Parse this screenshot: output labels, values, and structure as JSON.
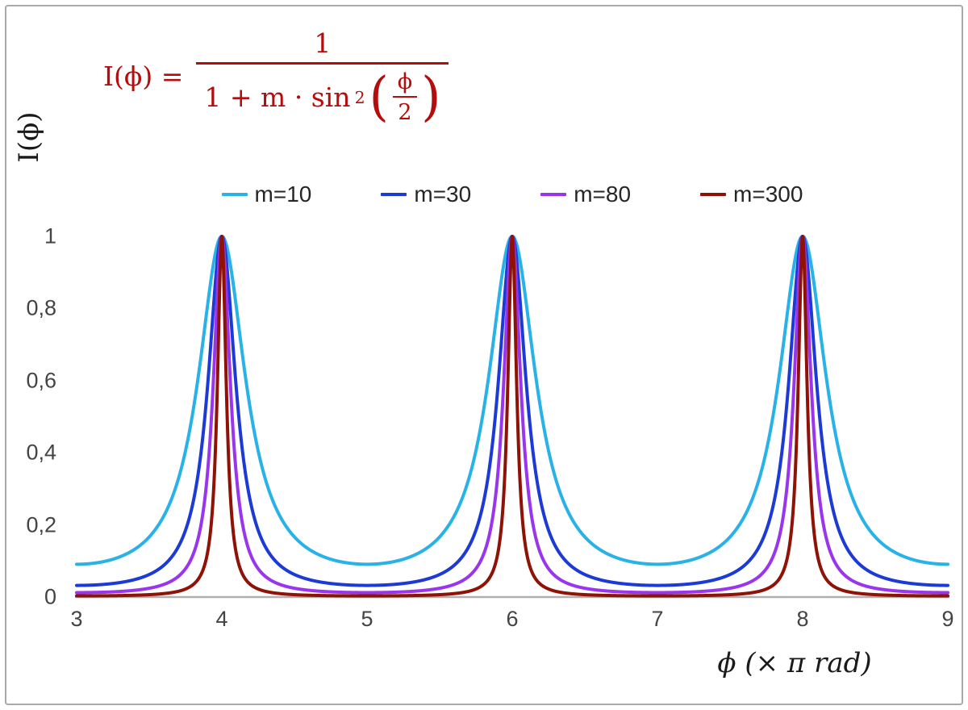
{
  "chart_data": {
    "type": "line",
    "title": "",
    "formula": {
      "lhs": "I(ϕ) =",
      "numerator": "1",
      "denom_prefix": "1 + m · sin",
      "denom_sup": "2",
      "inner_numerator": "ϕ",
      "inner_denominator": "2",
      "plain_text": "I(ϕ) = 1 / (1 + m·sin²(ϕ/2))"
    },
    "xlabel": "ϕ  (× π rad)",
    "ylabel": "I(ϕ)",
    "x_range": [
      3,
      9
    ],
    "y_range": [
      0,
      1
    ],
    "x_ticks": [
      "3",
      "4",
      "5",
      "6",
      "7",
      "8",
      "9"
    ],
    "x_tick_values": [
      3,
      4,
      5,
      6,
      7,
      8,
      9
    ],
    "y_ticks": [
      "0",
      "0,2",
      "0,4",
      "0,6",
      "0,8",
      "1"
    ],
    "y_tick_values": [
      0,
      0.2,
      0.4,
      0.6,
      0.8,
      1
    ],
    "grid": false,
    "legend_position": "top-center",
    "peaks_at_x": [
      4,
      6,
      8
    ],
    "peak_value": 1,
    "series": [
      {
        "name": "m=10",
        "m": 10,
        "color": "#29b2e8",
        "min_value": 0.0909
      },
      {
        "name": "m=30",
        "m": 30,
        "color": "#1c3ad6",
        "min_value": 0.0323
      },
      {
        "name": "m=80",
        "m": 80,
        "color": "#9a35ee",
        "min_value": 0.0123
      },
      {
        "name": "m=300",
        "m": 300,
        "color": "#8e1206",
        "min_value": 0.0033
      }
    ]
  },
  "colors": {
    "formula_text": "#b30d0d",
    "axis_line": "#b0b0b0",
    "tick_text": "#444444",
    "border": "#a9a9a9",
    "background": "#ffffff"
  }
}
